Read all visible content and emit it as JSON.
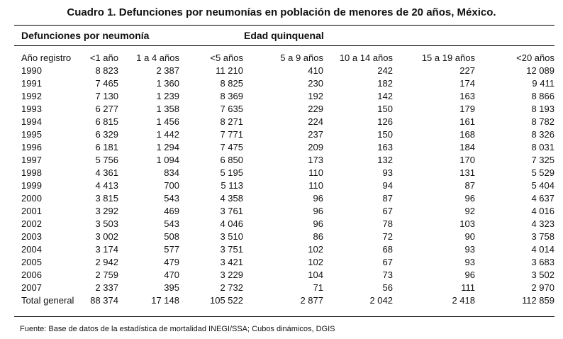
{
  "title": "Cuadro 1. Defunciones por neumonías en población de menores de 20 años, México.",
  "group_header_left": "Defunciones por neumonía",
  "group_header_right": "Edad quinquenal",
  "columns": [
    "Año registro",
    "<1 año",
    "1 a 4 años",
    "<5 años",
    "5 a 9 años",
    "10 a 14 años",
    "15 a 19 años",
    "<20 años"
  ],
  "rows": [
    [
      "1990",
      "8 823",
      "2 387",
      "11 210",
      "410",
      "242",
      "227",
      "12 089"
    ],
    [
      "1991",
      "7 465",
      "1 360",
      "8 825",
      "230",
      "182",
      "174",
      "9 411"
    ],
    [
      "1992",
      "7 130",
      "1 239",
      "8 369",
      "192",
      "142",
      "163",
      "8 866"
    ],
    [
      "1993",
      "6 277",
      "1 358",
      "7 635",
      "229",
      "150",
      "179",
      "8 193"
    ],
    [
      "1994",
      "6 815",
      "1 456",
      "8 271",
      "224",
      "126",
      "161",
      "8 782"
    ],
    [
      "1995",
      "6 329",
      "1 442",
      "7 771",
      "237",
      "150",
      "168",
      "8 326"
    ],
    [
      "1996",
      "6 181",
      "1 294",
      "7 475",
      "209",
      "163",
      "184",
      "8 031"
    ],
    [
      "1997",
      "5 756",
      "1 094",
      "6 850",
      "173",
      "132",
      "170",
      "7 325"
    ],
    [
      "1998",
      "4 361",
      "834",
      "5 195",
      "110",
      "93",
      "131",
      "5 529"
    ],
    [
      "1999",
      "4 413",
      "700",
      "5 113",
      "110",
      "94",
      "87",
      "5 404"
    ],
    [
      "2000",
      "3 815",
      "543",
      "4 358",
      "96",
      "87",
      "96",
      "4 637"
    ],
    [
      "2001",
      "3 292",
      "469",
      "3 761",
      "96",
      "67",
      "92",
      "4 016"
    ],
    [
      "2002",
      "3 503",
      "543",
      "4 046",
      "96",
      "78",
      "103",
      "4 323"
    ],
    [
      "2003",
      "3 002",
      "508",
      "3 510",
      "86",
      "72",
      "90",
      "3 758"
    ],
    [
      "2004",
      "3 174",
      "577",
      "3 751",
      "102",
      "68",
      "93",
      "4 014"
    ],
    [
      "2005",
      "2 942",
      "479",
      "3 421",
      "102",
      "67",
      "93",
      "3 683"
    ],
    [
      "2006",
      "2 759",
      "470",
      "3 229",
      "104",
      "73",
      "96",
      "3 502"
    ],
    [
      "2007",
      "2 337",
      "395",
      "2 732",
      "71",
      "56",
      "111",
      "2 970"
    ],
    [
      "Total general",
      "88 374",
      "17 148",
      "105 522",
      "2 877",
      "2 042",
      "2 418",
      "112 859"
    ]
  ],
  "source": "Fuente: Base de datos de la estadística de mortalidad INEGI/SSA; Cubos dinámicos, DGIS"
}
